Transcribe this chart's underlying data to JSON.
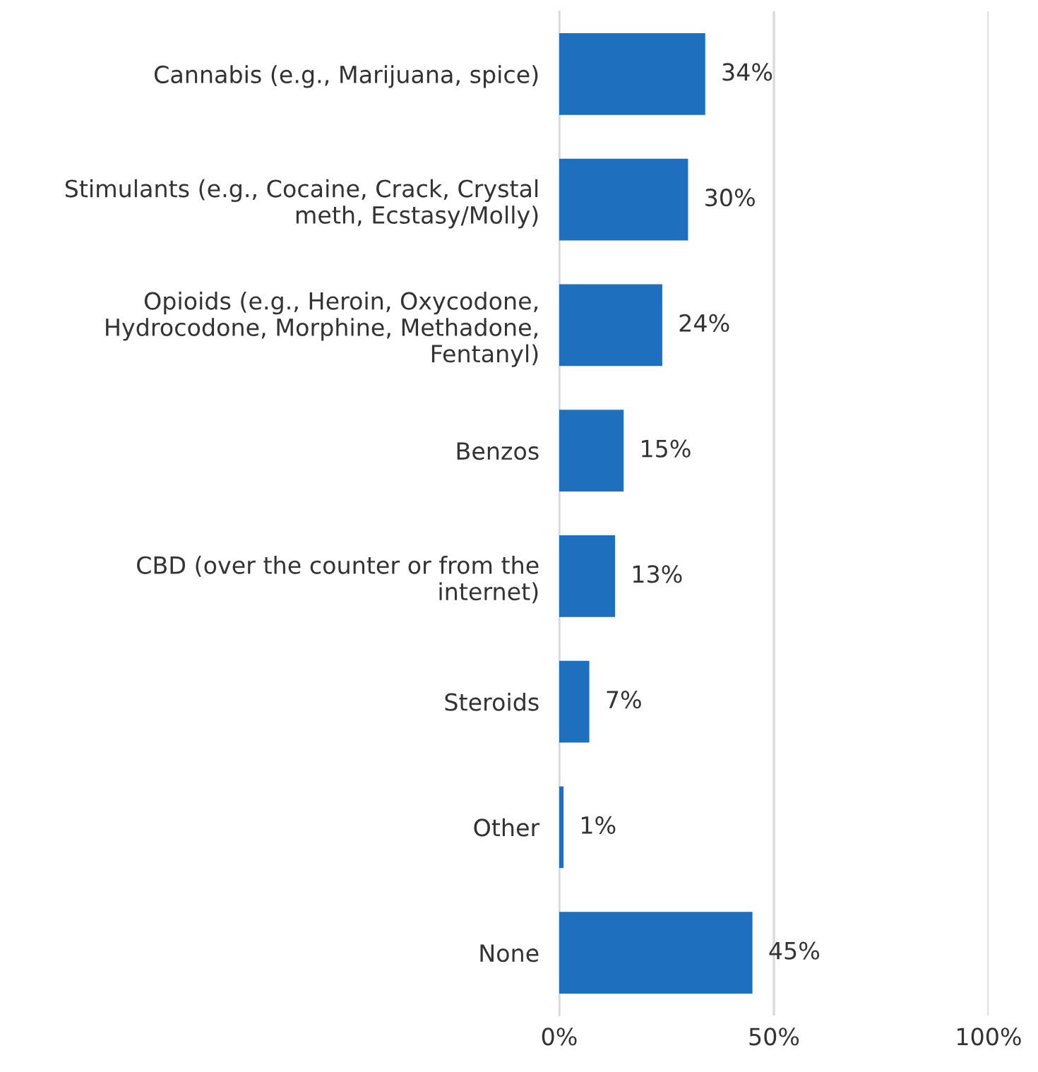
{
  "chart_data": {
    "type": "bar",
    "orientation": "horizontal",
    "categories": [
      "Cannabis (e.g., Marijuana, spice)",
      "Stimulants (e.g., Cocaine, Crack, Crystal\nmeth, Ecstasy/Molly)",
      "Opioids (e.g., Heroin, Oxycodone,\nHydrocodone, Morphine, Methadone,\nFentanyl)",
      "Benzos",
      "CBD (over the counter or from the\ninternet)",
      "Steroids",
      "Other",
      "None"
    ],
    "values": [
      34,
      30,
      24,
      15,
      13,
      7,
      1,
      45
    ],
    "value_labels": [
      "34%",
      "30%",
      "24%",
      "15%",
      "13%",
      "7%",
      "1%",
      "45%"
    ],
    "color": "#1f6fbf",
    "xlim": [
      0,
      100
    ],
    "xticks": [
      {
        "value": 0,
        "label": "0%"
      },
      {
        "value": 50,
        "label": "50%"
      },
      {
        "value": 100,
        "label": "100%"
      }
    ],
    "grid": "x"
  }
}
